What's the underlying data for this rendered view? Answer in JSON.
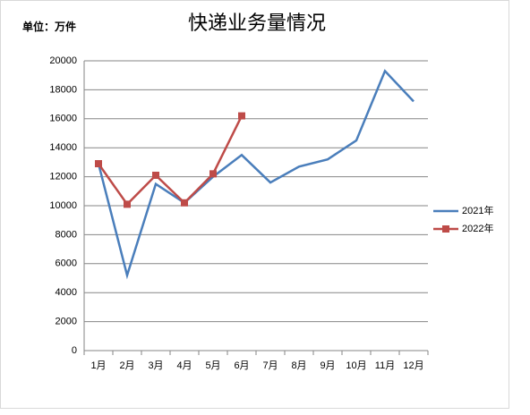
{
  "chart_data": {
    "type": "line",
    "title": "快递业务量情况",
    "unit_label": "单位：万件",
    "categories": [
      "1月",
      "2月",
      "3月",
      "4月",
      "5月",
      "6月",
      "7月",
      "8月",
      "9月",
      "10月",
      "11月",
      "12月"
    ],
    "series": [
      {
        "name": "2021年",
        "color": "#4a7ebb",
        "values": [
          12900,
          5200,
          11500,
          10200,
          12000,
          13500,
          11600,
          12700,
          13200,
          14500,
          19300,
          17200
        ]
      },
      {
        "name": "2022年",
        "color": "#be4b48",
        "marker": "square",
        "values": [
          12900,
          10100,
          12100,
          10200,
          12200,
          16200,
          null,
          null,
          null,
          null,
          null,
          null
        ]
      }
    ],
    "ylim": [
      0,
      20000
    ],
    "yticks": [
      0,
      2000,
      4000,
      6000,
      8000,
      10000,
      12000,
      14000,
      16000,
      18000,
      20000
    ],
    "grid": true,
    "legend": "right"
  }
}
